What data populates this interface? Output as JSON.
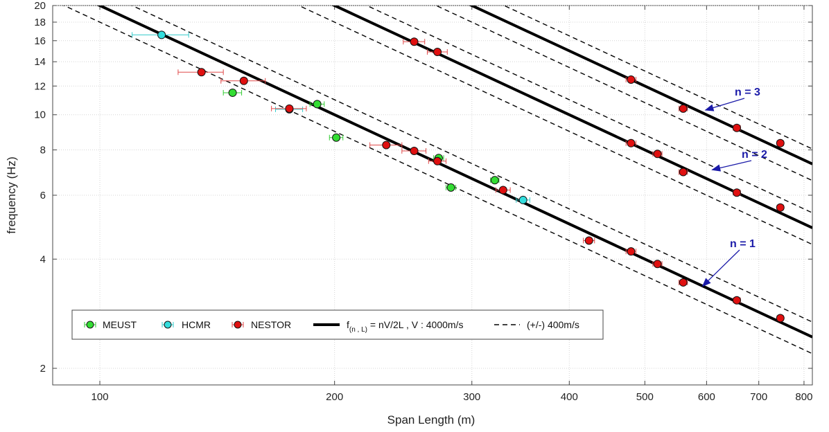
{
  "chart_data": {
    "type": "scatter",
    "xlabel": "Span Length (m)",
    "ylabel": "frequency (Hz)",
    "xscale": "log",
    "yscale": "log",
    "xlim": [
      87,
      820
    ],
    "ylim": [
      1.8,
      20
    ],
    "xticks": [
      100,
      200,
      300,
      400,
      500,
      600,
      700,
      800
    ],
    "yticks": [
      2,
      4,
      6,
      8,
      10,
      12,
      14,
      16,
      18,
      20
    ],
    "grid": true,
    "legend_position": "bottom-left",
    "colors": {
      "MEUST": "#33dd33",
      "HCMR": "#33dddd",
      "NESTOR": "#e01010",
      "errorbar_NESTOR": "#e04040"
    },
    "series": [
      {
        "name": "MEUST",
        "marker": "circle",
        "points": [
          {
            "x": 148,
            "y": 11.5,
            "xerr": 4
          },
          {
            "x": 190,
            "y": 10.7,
            "xerr": 4
          },
          {
            "x": 201,
            "y": 8.65,
            "xerr": 4
          },
          {
            "x": 272,
            "y": 7.6,
            "xerr": 4
          },
          {
            "x": 282,
            "y": 6.3,
            "xerr": 4
          },
          {
            "x": 321,
            "y": 6.6,
            "xerr": 4
          }
        ]
      },
      {
        "name": "HCMR",
        "marker": "circle",
        "points": [
          {
            "x": 120,
            "y": 16.6,
            "xerr": 10
          },
          {
            "x": 175,
            "y": 10.35,
            "xerr": 7
          },
          {
            "x": 349,
            "y": 5.82,
            "xerr": 7
          }
        ]
      },
      {
        "name": "NESTOR",
        "marker": "circle",
        "points": [
          {
            "x": 135,
            "y": 13.1,
            "xerr": 9
          },
          {
            "x": 153,
            "y": 12.4,
            "xerr": 10
          },
          {
            "x": 175,
            "y": 10.4,
            "xerr": 9
          },
          {
            "x": 233,
            "y": 8.25,
            "xerr": 11
          },
          {
            "x": 253,
            "y": 7.95,
            "xerr": 9
          },
          {
            "x": 253,
            "y": 15.9,
            "xerr": 8
          },
          {
            "x": 271,
            "y": 7.45,
            "xerr": 7
          },
          {
            "x": 271,
            "y": 14.9,
            "xerr": 8
          },
          {
            "x": 329,
            "y": 6.2,
            "xerr": 7
          },
          {
            "x": 424,
            "y": 4.5,
            "xerr": 7
          },
          {
            "x": 480,
            "y": 4.2,
            "xerr": 7
          },
          {
            "x": 480,
            "y": 8.35,
            "xerr": 7
          },
          {
            "x": 480,
            "y": 12.5,
            "xerr": 7
          },
          {
            "x": 519,
            "y": 3.88,
            "xerr": 7
          },
          {
            "x": 519,
            "y": 7.8,
            "xerr": 7
          },
          {
            "x": 560,
            "y": 3.45,
            "xerr": 7
          },
          {
            "x": 560,
            "y": 6.95,
            "xerr": 7
          },
          {
            "x": 560,
            "y": 10.4,
            "xerr": 7
          },
          {
            "x": 656,
            "y": 3.08,
            "xerr": 7
          },
          {
            "x": 656,
            "y": 6.1,
            "xerr": 7
          },
          {
            "x": 656,
            "y": 9.2,
            "xerr": 7
          },
          {
            "x": 746,
            "y": 2.75,
            "xerr": 7
          },
          {
            "x": 746,
            "y": 5.55,
            "xerr": 7
          },
          {
            "x": 746,
            "y": 8.35,
            "xerr": 7
          }
        ]
      }
    ],
    "model_lines": {
      "label": "nV/2L",
      "subscript": "(n , L)",
      "velocity_label": "V : 4000m/s",
      "band_label": "(+/-) 400m/s",
      "V": 4000,
      "dV": 400,
      "modes": [
        1,
        2,
        3
      ]
    },
    "annotations": [
      {
        "text": "n = 1",
        "target": [
          593,
          3.37
        ]
      },
      {
        "text": "n = 2",
        "target": [
          610,
          7.05
        ]
      },
      {
        "text": "n = 3",
        "target": [
          598,
          10.3
        ]
      }
    ],
    "legend": {
      "entries": [
        "MEUST",
        "HCMR",
        "NESTOR"
      ],
      "f_label": "f",
      "equals": " = ",
      "separator": " ,  "
    }
  }
}
